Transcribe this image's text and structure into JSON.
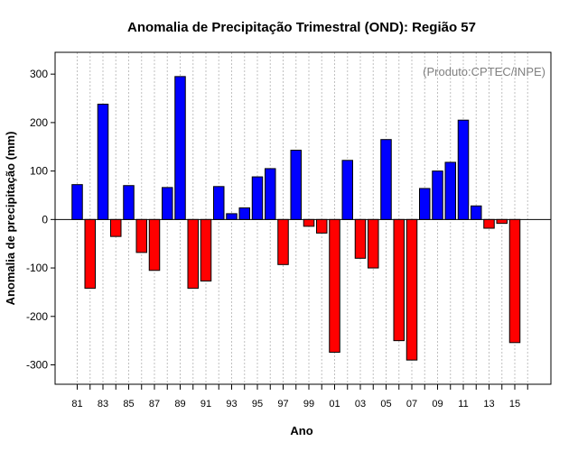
{
  "chart_data": {
    "type": "bar",
    "title": "Anomalia de Precipitação Trimestral (OND): Região 57",
    "xlabel": "Ano",
    "ylabel": "Anomalia de precipitação (mm)",
    "credit": "(Produto:CPTEC/INPE)",
    "ylim": [
      -340,
      345
    ],
    "yticks": [
      -300,
      -200,
      -100,
      0,
      100,
      200,
      300
    ],
    "ytick_labels": [
      "-300",
      "-200",
      "-100",
      "0",
      "100",
      "200",
      "300"
    ],
    "categories": [
      "81",
      "82",
      "83",
      "84",
      "85",
      "86",
      "87",
      "88",
      "89",
      "90",
      "91",
      "92",
      "93",
      "94",
      "95",
      "96",
      "97",
      "98",
      "99",
      "00",
      "01",
      "02",
      "03",
      "04",
      "05",
      "06",
      "07",
      "08",
      "09",
      "10",
      "11",
      "12",
      "13",
      "14",
      "15",
      "16"
    ],
    "xtick_labels": [
      "81",
      "83",
      "85",
      "87",
      "89",
      "91",
      "93",
      "95",
      "97",
      "99",
      "01",
      "03",
      "05",
      "07",
      "09",
      "11",
      "13",
      "15"
    ],
    "values": [
      72,
      -142,
      238,
      -35,
      70,
      -68,
      -105,
      66,
      295,
      -142,
      -127,
      68,
      12,
      24,
      88,
      105,
      -93,
      143,
      -14,
      -28,
      -274,
      122,
      -80,
      -100,
      165,
      -250,
      -290,
      64,
      100,
      118,
      205,
      28,
      -18,
      -8,
      -254,
      null
    ],
    "colors": {
      "positive": "#0000ff",
      "negative": "#ff0000",
      "grid": "#c0c0c0",
      "axis": "#000000"
    },
    "grid": true
  }
}
